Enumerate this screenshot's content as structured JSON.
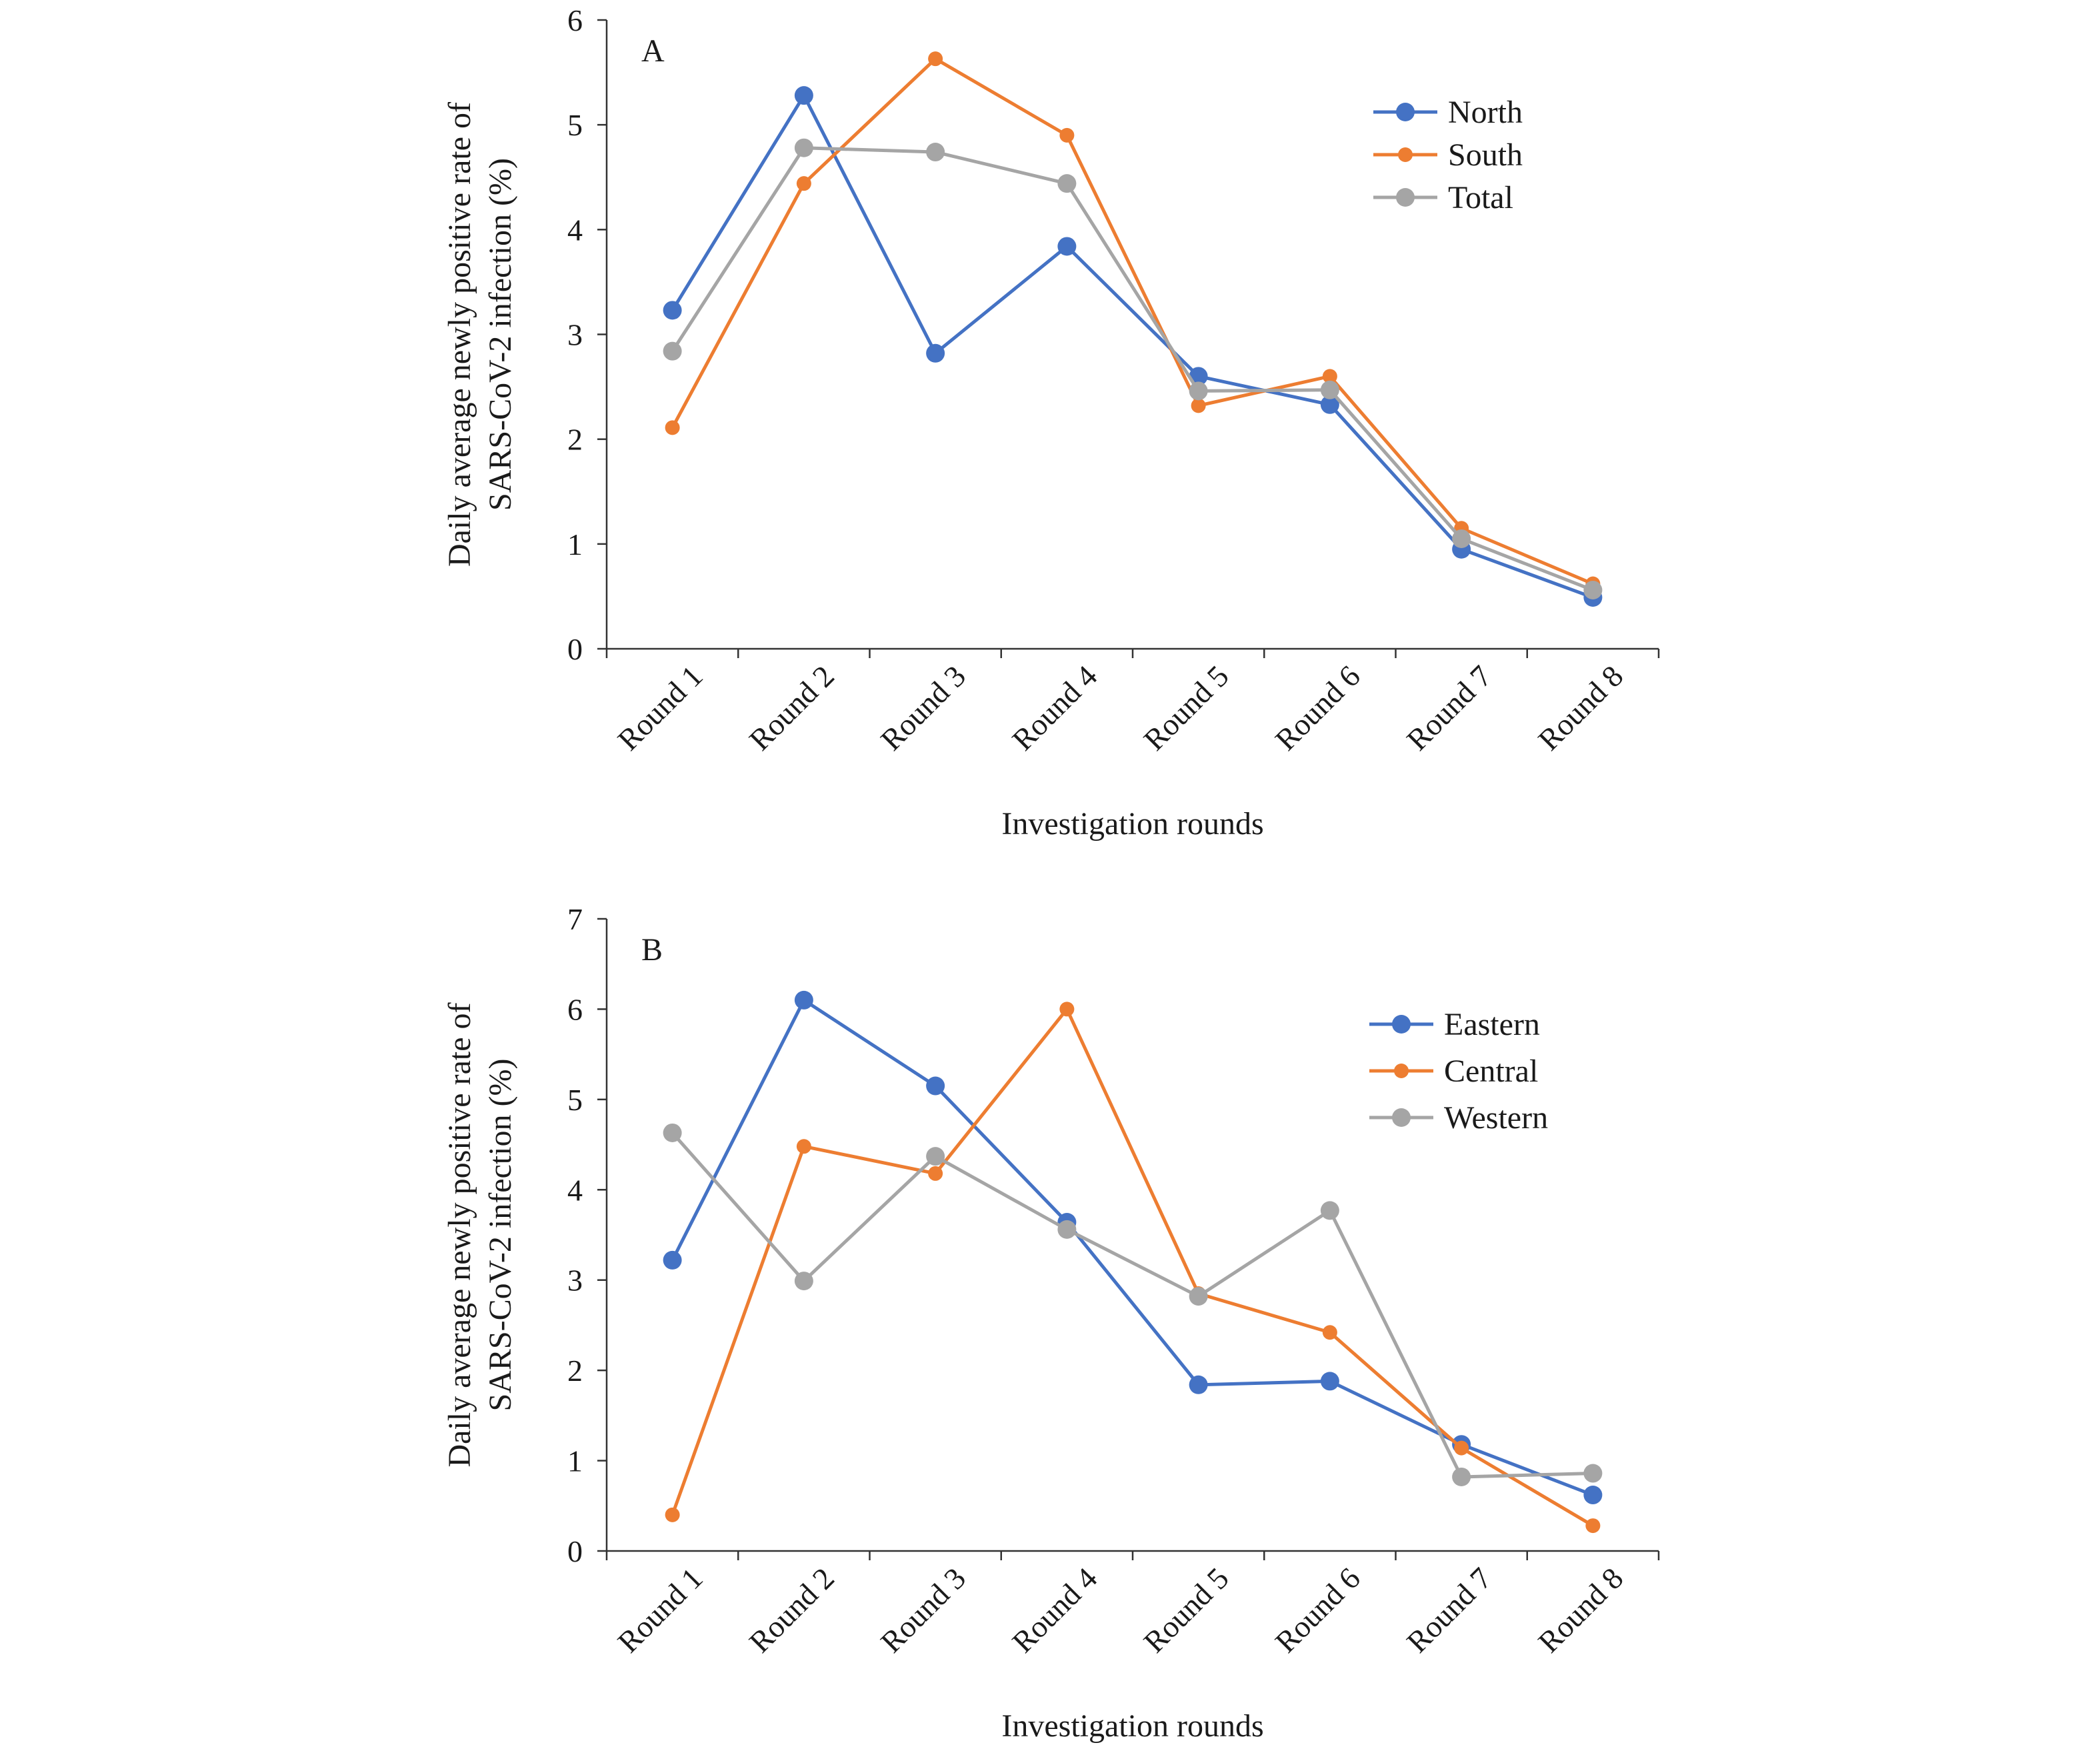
{
  "chart_data": [
    {
      "type": "line",
      "panel_label": "A",
      "xlabel": "Investigation rounds",
      "ylabel_line1": "Daily average newly positive rate of",
      "ylabel_line2": "SARS-CoV-2 infection (%)",
      "ylim": [
        0,
        6
      ],
      "yticks": [
        "0",
        "1",
        "2",
        "3",
        "4",
        "5",
        "6"
      ],
      "categories": [
        "Round 1",
        "Round 2",
        "Round 3",
        "Round 4",
        "Round 5",
        "Round 6",
        "Round 7",
        "Round 8"
      ],
      "legend_position": "top-right",
      "series": [
        {
          "name": "North",
          "color": "#4472c4",
          "values": [
            3.23,
            5.28,
            2.82,
            3.84,
            2.6,
            2.33,
            0.95,
            0.49
          ]
        },
        {
          "name": "South",
          "color": "#ed7d31",
          "values": [
            2.11,
            4.44,
            5.63,
            4.9,
            2.32,
            2.6,
            1.15,
            0.62
          ]
        },
        {
          "name": "Total",
          "color": "#a5a5a5",
          "values": [
            2.84,
            4.78,
            4.74,
            4.44,
            2.46,
            2.47,
            1.05,
            0.56
          ]
        }
      ]
    },
    {
      "type": "line",
      "panel_label": "B",
      "xlabel": "Investigation rounds",
      "ylabel_line1": "Daily average newly positive rate of",
      "ylabel_line2": "SARS-CoV-2 infection (%)",
      "ylim": [
        0,
        7
      ],
      "yticks": [
        "0",
        "1",
        "2",
        "3",
        "4",
        "5",
        "6",
        "7"
      ],
      "categories": [
        "Round 1",
        "Round 2",
        "Round 3",
        "Round 4",
        "Round 5",
        "Round 6",
        "Round 7",
        "Round 8"
      ],
      "legend_position": "top-right",
      "series": [
        {
          "name": "Eastern",
          "color": "#4472c4",
          "values": [
            3.22,
            6.1,
            5.15,
            3.64,
            1.84,
            1.88,
            1.18,
            0.62
          ]
        },
        {
          "name": "Central",
          "color": "#ed7d31",
          "values": [
            0.4,
            4.48,
            4.18,
            6.0,
            2.85,
            2.42,
            1.14,
            0.28
          ]
        },
        {
          "name": "Western",
          "color": "#a5a5a5",
          "values": [
            4.63,
            2.99,
            4.37,
            3.56,
            2.82,
            3.77,
            0.82,
            0.86
          ]
        }
      ]
    }
  ]
}
